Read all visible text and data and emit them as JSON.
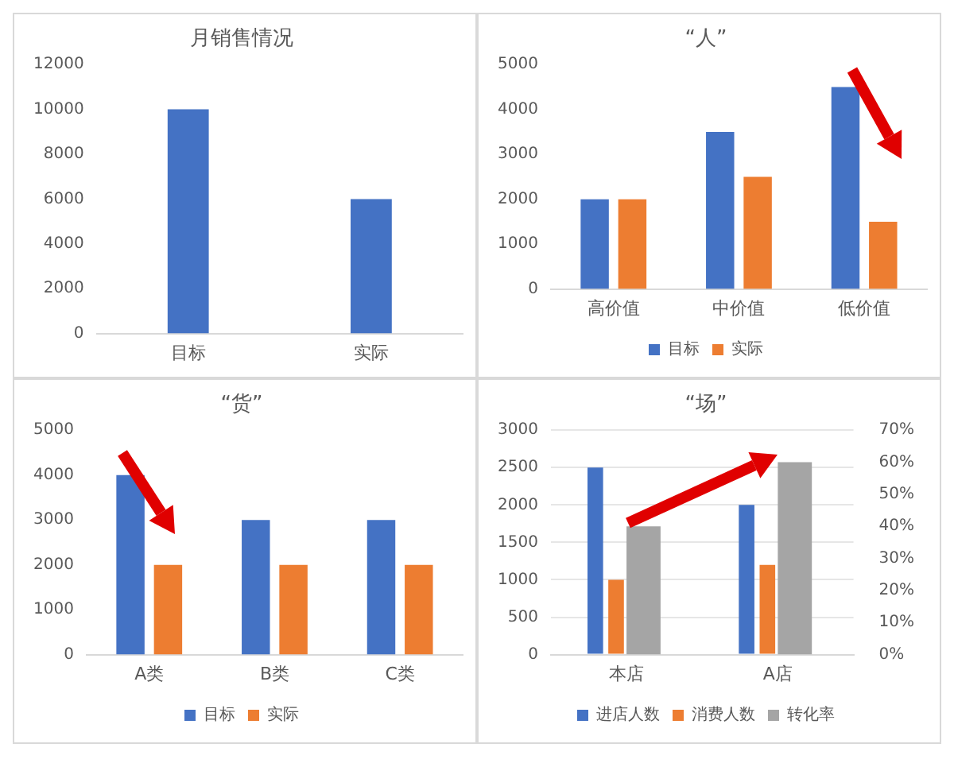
{
  "chart_data": [
    {
      "type": "bar",
      "title": "月销售情况",
      "categories": [
        "目标",
        "实际"
      ],
      "series": [
        {
          "color": "#4472c4",
          "values": [
            10000,
            6000
          ]
        }
      ],
      "ylim": [
        0,
        12000
      ],
      "yticks": [
        0,
        2000,
        4000,
        6000,
        8000,
        10000,
        12000
      ],
      "grid": false,
      "legend": false
    },
    {
      "type": "bar",
      "title": "“人”",
      "categories": [
        "高价值",
        "中价值",
        "低价值"
      ],
      "series": [
        {
          "name": "目标",
          "color": "#4472c4",
          "values": [
            2000,
            3500,
            4500
          ]
        },
        {
          "name": "实际",
          "color": "#ed7d31",
          "values": [
            2000,
            2500,
            1500
          ]
        }
      ],
      "ylim": [
        0,
        5000
      ],
      "yticks": [
        0,
        1000,
        2000,
        3000,
        4000,
        5000
      ],
      "grid": false,
      "legend": "bottom"
    },
    {
      "type": "bar",
      "title": "“货”",
      "categories": [
        "A类",
        "B类",
        "C类"
      ],
      "series": [
        {
          "name": "目标",
          "color": "#4472c4",
          "values": [
            4000,
            3000,
            3000
          ]
        },
        {
          "name": "实际",
          "color": "#ed7d31",
          "values": [
            2000,
            2000,
            2000
          ]
        }
      ],
      "ylim": [
        0,
        5000
      ],
      "yticks": [
        0,
        1000,
        2000,
        3000,
        4000,
        5000
      ],
      "grid": false,
      "legend": "bottom"
    },
    {
      "type": "bar",
      "title": "“场”",
      "categories": [
        "本店",
        "A店"
      ],
      "series": [
        {
          "name": "进店人数",
          "color": "#4472c4",
          "values": [
            2500,
            2000
          ]
        },
        {
          "name": "消费人数",
          "color": "#ed7d31",
          "values": [
            1000,
            1200
          ]
        },
        {
          "name": "转化率",
          "color": "#a5a5a5",
          "values": [
            40,
            60
          ],
          "axis": "y2"
        }
      ],
      "ylim": [
        0,
        3000
      ],
      "yticks": [
        0,
        500,
        1000,
        1500,
        2000,
        2500,
        3000
      ],
      "y2lim": [
        0,
        70
      ],
      "y2ticks": [
        {
          "value": 0,
          "label": "0%"
        },
        {
          "value": 10,
          "label": "10%"
        },
        {
          "value": 20,
          "label": "20%"
        },
        {
          "value": 30,
          "label": "30%"
        },
        {
          "value": 40,
          "label": "40%"
        },
        {
          "value": 50,
          "label": "50%"
        },
        {
          "value": 60,
          "label": "60%"
        },
        {
          "value": 70,
          "label": "70%"
        }
      ],
      "grid": "y",
      "legend": "bottom"
    }
  ]
}
